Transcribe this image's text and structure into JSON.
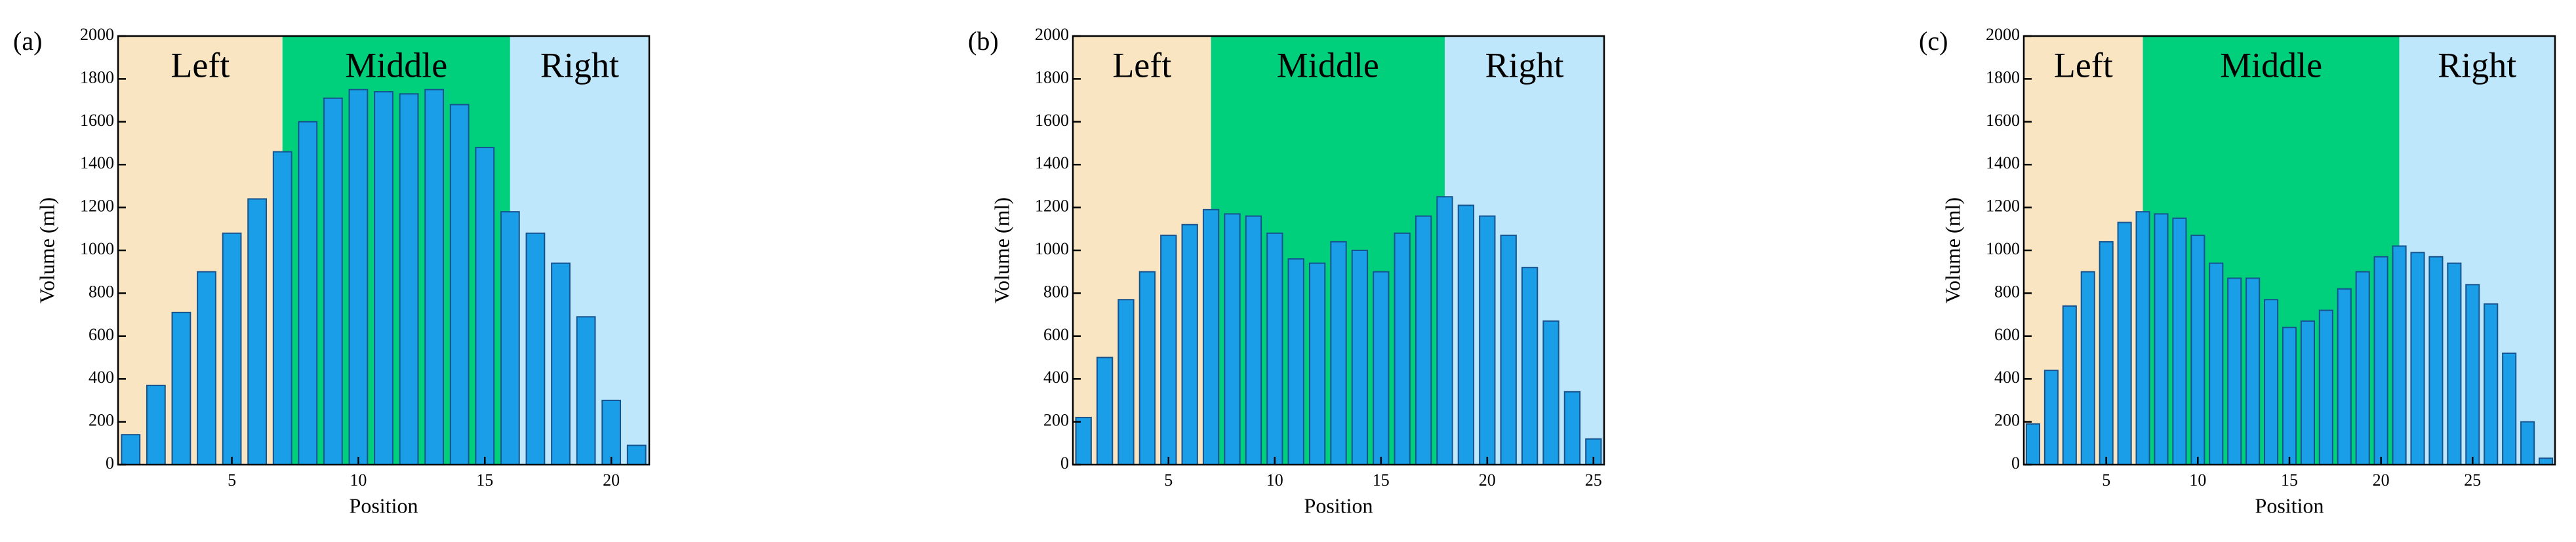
{
  "chart_data": [
    {
      "type": "bar",
      "panel_label": "(a)",
      "xlabel": "Position",
      "ylabel": "Volume (ml)",
      "x": [
        1,
        2,
        3,
        4,
        5,
        6,
        7,
        8,
        9,
        10,
        11,
        12,
        13,
        14,
        15,
        16,
        17,
        18,
        19,
        20,
        21
      ],
      "values": [
        140,
        370,
        710,
        900,
        1080,
        1240,
        1460,
        1600,
        1710,
        1750,
        1740,
        1730,
        1750,
        1680,
        1480,
        1180,
        1080,
        940,
        690,
        300,
        90
      ],
      "color": "#1a9ee8",
      "xlim": [
        0.5,
        21.5
      ],
      "xticks": [
        5,
        10,
        15,
        20
      ],
      "ylim": [
        0,
        2000
      ],
      "yticks": [
        0,
        200,
        400,
        600,
        800,
        1000,
        1200,
        1400,
        1600,
        1800,
        2000
      ],
      "region_labels": [
        "Left",
        "Middle",
        "Right"
      ],
      "region_bounds": [
        7,
        16
      ],
      "region_colors": [
        "#f9e5c2",
        "#00cf7c",
        "#bfe7fb"
      ]
    },
    {
      "type": "bar",
      "panel_label": "(b)",
      "xlabel": "Position",
      "ylabel": "Volume (ml)",
      "x": [
        1,
        2,
        3,
        4,
        5,
        6,
        7,
        8,
        9,
        10,
        11,
        12,
        13,
        14,
        15,
        16,
        17,
        18,
        19,
        20,
        21,
        22,
        23,
        24,
        25
      ],
      "values": [
        220,
        500,
        770,
        900,
        1070,
        1120,
        1190,
        1170,
        1160,
        1080,
        960,
        940,
        1040,
        1000,
        900,
        1080,
        1160,
        1250,
        1210,
        1160,
        1070,
        920,
        670,
        340,
        120
      ],
      "color": "#1a9ee8",
      "xlim": [
        0.5,
        25.5
      ],
      "xticks": [
        5,
        10,
        15,
        20,
        25
      ],
      "ylim": [
        0,
        2000
      ],
      "yticks": [
        0,
        200,
        400,
        600,
        800,
        1000,
        1200,
        1400,
        1600,
        1800,
        2000
      ],
      "region_labels": [
        "Left",
        "Middle",
        "Right"
      ],
      "region_bounds": [
        7,
        18
      ],
      "region_colors": [
        "#f9e5c2",
        "#00cf7c",
        "#bfe7fb"
      ]
    },
    {
      "type": "bar",
      "panel_label": "(c)",
      "xlabel": "Position",
      "ylabel": "Volume (ml)",
      "x": [
        1,
        2,
        3,
        4,
        5,
        6,
        7,
        8,
        9,
        10,
        11,
        12,
        13,
        14,
        15,
        16,
        17,
        18,
        19,
        20,
        21,
        22,
        23,
        24,
        25,
        26,
        27,
        28,
        29
      ],
      "values": [
        190,
        440,
        740,
        900,
        1040,
        1130,
        1180,
        1170,
        1150,
        1070,
        940,
        870,
        870,
        770,
        640,
        670,
        720,
        820,
        900,
        970,
        1020,
        990,
        970,
        940,
        840,
        750,
        520,
        200,
        30
      ],
      "color": "#1a9ee8",
      "xlim": [
        0.5,
        29.5
      ],
      "xticks": [
        5,
        10,
        15,
        20,
        25
      ],
      "ylim": [
        0,
        2000
      ],
      "yticks": [
        0,
        200,
        400,
        600,
        800,
        1000,
        1200,
        1400,
        1600,
        1800,
        2000
      ],
      "region_labels": [
        "Left",
        "Middle",
        "Right"
      ],
      "region_bounds": [
        7,
        21
      ],
      "region_colors": [
        "#f9e5c2",
        "#00cf7c",
        "#bfe7fb"
      ]
    }
  ]
}
